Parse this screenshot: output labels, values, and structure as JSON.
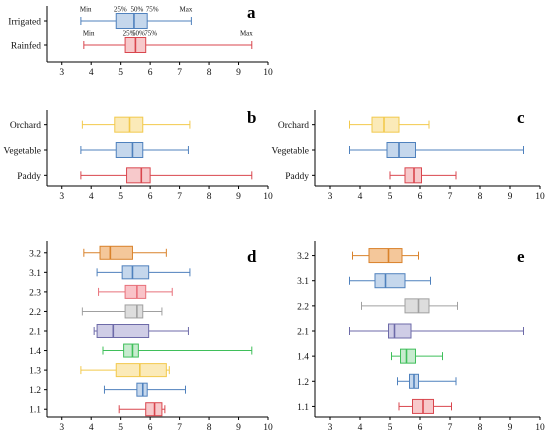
{
  "chart_data": [
    {
      "panel": "a",
      "type": "boxplot",
      "orientation": "horizontal",
      "xlim": [
        2.5,
        10
      ],
      "xticks": [
        3,
        4,
        5,
        6,
        7,
        8,
        9,
        10
      ],
      "annotations": {
        "min": "Min",
        "q1": "25%",
        "median": "50%",
        "q3": "75%",
        "max": "Max"
      },
      "series": [
        {
          "name": "Irrigated",
          "color": "#4f81bd",
          "fill": "#c5d7ec",
          "min": 3.65,
          "q1": 4.85,
          "median": 5.45,
          "q3": 5.9,
          "max": 7.4
        },
        {
          "name": "Rainfed",
          "color": "#d9464e",
          "fill": "#f7c9cb",
          "min": 3.75,
          "q1": 5.15,
          "median": 5.5,
          "q3": 5.85,
          "max": 9.45
        }
      ]
    },
    {
      "panel": "b",
      "type": "boxplot",
      "orientation": "horizontal",
      "xlim": [
        2.5,
        10
      ],
      "xticks": [
        3,
        4,
        5,
        6,
        7,
        8,
        9,
        10
      ],
      "series": [
        {
          "name": "Orchard",
          "color": "#f2c94c",
          "fill": "#fbeab8",
          "min": 3.7,
          "q1": 4.8,
          "median": 5.3,
          "q3": 5.75,
          "max": 7.35
        },
        {
          "name": "Vegetable",
          "color": "#4f81bd",
          "fill": "#c5d7ec",
          "min": 3.65,
          "q1": 4.85,
          "median": 5.4,
          "q3": 5.75,
          "max": 7.3
        },
        {
          "name": "Paddy",
          "color": "#d9464e",
          "fill": "#f7c9cb",
          "min": 3.65,
          "q1": 5.2,
          "median": 5.7,
          "q3": 6.0,
          "max": 9.45
        }
      ]
    },
    {
      "panel": "c",
      "type": "boxplot",
      "orientation": "horizontal",
      "xlim": [
        2.5,
        10
      ],
      "xticks": [
        3,
        4,
        5,
        6,
        7,
        8,
        9,
        10
      ],
      "series": [
        {
          "name": "Orchard",
          "color": "#f2c94c",
          "fill": "#fbeab8",
          "min": 3.65,
          "q1": 4.4,
          "median": 4.8,
          "q3": 5.3,
          "max": 6.3
        },
        {
          "name": "Vegetable",
          "color": "#4f81bd",
          "fill": "#c5d7ec",
          "min": 3.65,
          "q1": 4.9,
          "median": 5.3,
          "q3": 5.85,
          "max": 9.45
        },
        {
          "name": "Paddy",
          "color": "#d9464e",
          "fill": "#f7c9cb",
          "min": 5.0,
          "q1": 5.5,
          "median": 5.8,
          "q3": 6.05,
          "max": 7.2
        }
      ]
    },
    {
      "panel": "d",
      "type": "boxplot",
      "orientation": "horizontal",
      "xlim": [
        2.5,
        10
      ],
      "xticks": [
        3,
        4,
        5,
        6,
        7,
        8,
        9,
        10
      ],
      "series": [
        {
          "name": "3.2",
          "color": "#d9822b",
          "fill": "#f4c79a",
          "min": 3.75,
          "q1": 4.3,
          "median": 4.65,
          "q3": 5.4,
          "max": 6.55
        },
        {
          "name": "3.1",
          "color": "#4f81bd",
          "fill": "#c5d7ec",
          "min": 4.2,
          "q1": 5.05,
          "median": 5.4,
          "q3": 5.95,
          "max": 7.35
        },
        {
          "name": "2.3",
          "color": "#e8707a",
          "fill": "#f9c3c8",
          "min": 4.25,
          "q1": 5.15,
          "median": 5.55,
          "q3": 5.85,
          "max": 6.75
        },
        {
          "name": "2.2",
          "color": "#a0a0a0",
          "fill": "#dddddd",
          "min": 3.7,
          "q1": 5.15,
          "median": 5.55,
          "q3": 5.75,
          "max": 6.4
        },
        {
          "name": "2.1",
          "color": "#6d6aa8",
          "fill": "#cfcde6",
          "min": 4.1,
          "q1": 4.2,
          "median": 4.75,
          "q3": 5.95,
          "max": 7.3
        },
        {
          "name": "1.4",
          "color": "#3fbf5a",
          "fill": "#c7ebcf",
          "min": 4.4,
          "q1": 5.1,
          "median": 5.4,
          "q3": 5.6,
          "max": 9.45
        },
        {
          "name": "1.3",
          "color": "#f2c94c",
          "fill": "#fbeab8",
          "min": 3.65,
          "q1": 4.85,
          "median": 5.65,
          "q3": 6.55,
          "max": 6.65
        },
        {
          "name": "1.2",
          "color": "#4f81bd",
          "fill": "#c5d7ec",
          "min": 4.45,
          "q1": 5.55,
          "median": 5.75,
          "q3": 5.9,
          "max": 7.2
        },
        {
          "name": "1.1",
          "color": "#d9464e",
          "fill": "#f7c9cb",
          "min": 4.95,
          "q1": 5.85,
          "median": 6.15,
          "q3": 6.4,
          "max": 6.5
        }
      ]
    },
    {
      "panel": "e",
      "type": "boxplot",
      "orientation": "horizontal",
      "xlim": [
        2.5,
        10
      ],
      "xticks": [
        3,
        4,
        5,
        6,
        7,
        8,
        9,
        10
      ],
      "series": [
        {
          "name": "3.2",
          "color": "#d9822b",
          "fill": "#f4c79a",
          "min": 3.75,
          "q1": 4.3,
          "median": 4.95,
          "q3": 5.4,
          "max": 5.95
        },
        {
          "name": "3.1",
          "color": "#4f81bd",
          "fill": "#c5d7ec",
          "min": 3.65,
          "q1": 4.5,
          "median": 4.85,
          "q3": 5.5,
          "max": 6.35
        },
        {
          "name": "2.2",
          "color": "#a0a0a0",
          "fill": "#dddddd",
          "min": 4.05,
          "q1": 5.5,
          "median": 5.95,
          "q3": 6.3,
          "max": 7.25
        },
        {
          "name": "2.1",
          "color": "#6d6aa8",
          "fill": "#cfcde6",
          "min": 3.65,
          "q1": 4.95,
          "median": 5.15,
          "q3": 5.7,
          "max": 9.45
        },
        {
          "name": "1.4",
          "color": "#3fbf5a",
          "fill": "#c7ebcf",
          "min": 5.05,
          "q1": 5.35,
          "median": 5.55,
          "q3": 5.85,
          "max": 6.75
        },
        {
          "name": "1.2",
          "color": "#4f81bd",
          "fill": "#c5d7ec",
          "min": 5.25,
          "q1": 5.65,
          "median": 5.8,
          "q3": 5.95,
          "max": 7.2
        },
        {
          "name": "1.1",
          "color": "#d9464e",
          "fill": "#f7c9cb",
          "min": 5.3,
          "q1": 5.75,
          "median": 6.1,
          "q3": 6.45,
          "max": 7.05
        }
      ]
    }
  ]
}
